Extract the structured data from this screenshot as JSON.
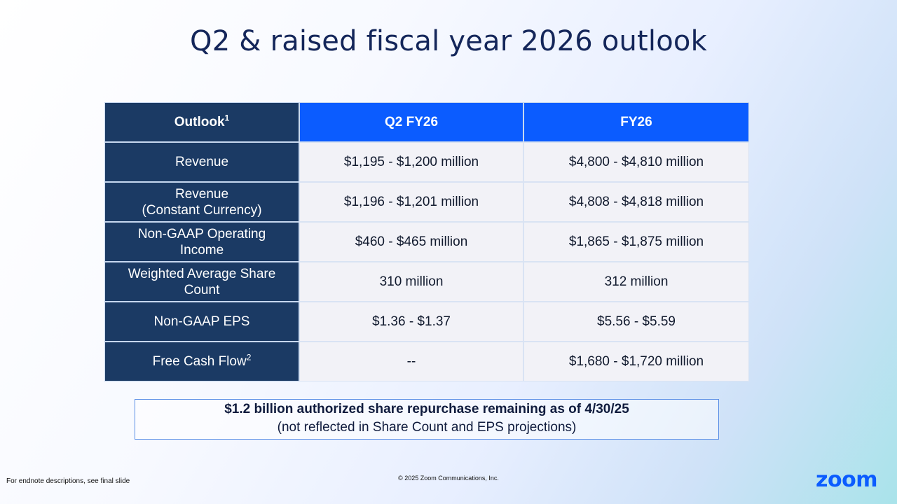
{
  "title": "Q2 & raised fiscal year 2026 outlook",
  "table": {
    "header": {
      "label": "Outlook",
      "label_sup": "1",
      "col1": "Q2 FY26",
      "col2": "FY26"
    },
    "rows": [
      {
        "label": "Revenue",
        "label_line2": "",
        "sup": "",
        "q2": "$1,195 - $1,200 million",
        "fy": "$4,800 - $4,810 million"
      },
      {
        "label": "Revenue",
        "label_line2": "(Constant Currency)",
        "sup": "",
        "q2": "$1,196 - $1,201 million",
        "fy": "$4,808 - $4,818 million"
      },
      {
        "label": "Non-GAAP Operating",
        "label_line2": "Income",
        "sup": "",
        "q2": "$460 - $465 million",
        "fy": "$1,865 - $1,875 million"
      },
      {
        "label": "Weighted Average Share",
        "label_line2": "Count",
        "sup": "",
        "q2": "310 million",
        "fy": "312 million"
      },
      {
        "label": "Non-GAAP EPS",
        "label_line2": "",
        "sup": "",
        "q2": "$1.36 - $1.37",
        "fy": "$5.56 - $5.59"
      },
      {
        "label": "Free Cash Flow",
        "label_line2": "",
        "sup": "2",
        "q2": "--",
        "fy": "$1,680 - $1,720 million"
      }
    ]
  },
  "note": {
    "bold": "$1.2 billion authorized share repurchase remaining as of 4/30/25",
    "sub": "(not reflected in Share Count and EPS projections)"
  },
  "footer": {
    "left": "For endnote descriptions, see final slide",
    "center": "© 2025 Zoom Communications, Inc.",
    "logo": "zoom"
  },
  "colors": {
    "navy": "#1b3a64",
    "blue": "#0b5cff",
    "cell": "#f2f2f7"
  }
}
